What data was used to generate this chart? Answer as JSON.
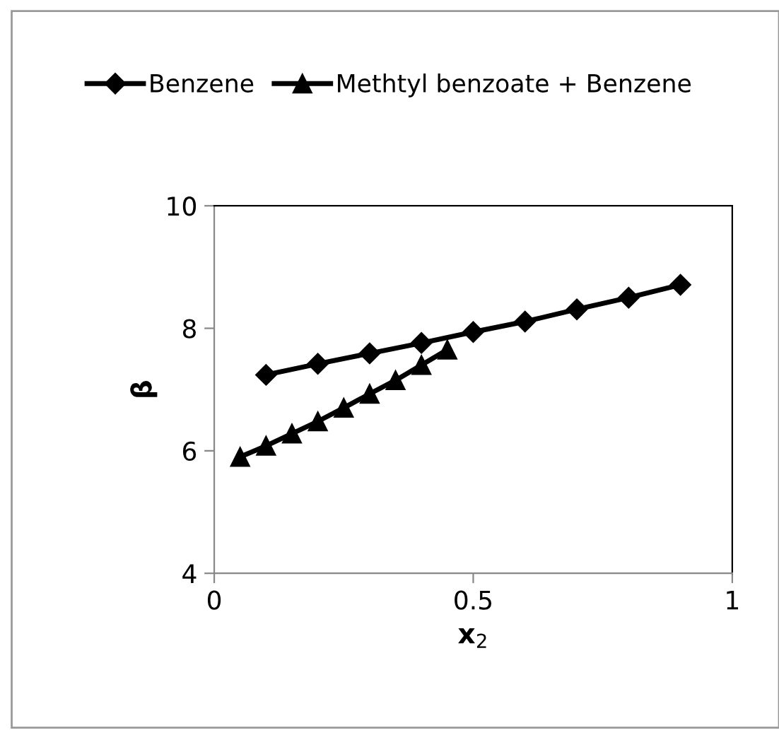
{
  "chart_data": {
    "type": "line",
    "xlabel": "x$_{2}$",
    "ylabel": "β",
    "xlim": [
      0,
      1
    ],
    "xticks": [
      0,
      0.5,
      1
    ],
    "ylim": [
      4,
      10
    ],
    "yticks": [
      4,
      6,
      8,
      10
    ],
    "legend": "top",
    "grid": false,
    "series": [
      {
        "name": "Benzene",
        "color": "#000000",
        "marker": "diamond",
        "x": [
          0.1,
          0.2,
          0.3,
          0.4,
          0.5,
          0.6,
          0.7,
          0.8,
          0.9
        ],
        "values": [
          7.24,
          7.42,
          7.59,
          7.76,
          7.94,
          8.11,
          8.31,
          8.5,
          8.71
        ]
      },
      {
        "name": "Methtyl benzoate + Benzene",
        "color": "#000000",
        "marker": "triangle",
        "x": [
          0.05,
          0.1,
          0.15,
          0.2,
          0.25,
          0.3,
          0.35,
          0.4,
          0.45
        ],
        "values": [
          5.9,
          6.08,
          6.28,
          6.48,
          6.7,
          6.93,
          7.15,
          7.4,
          7.65
        ]
      }
    ]
  }
}
